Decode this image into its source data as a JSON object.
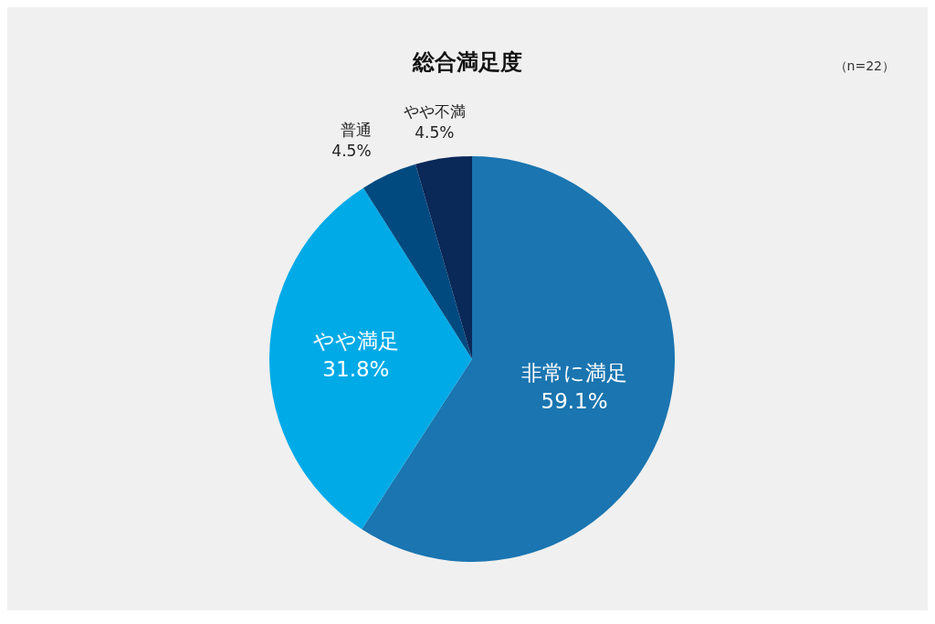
{
  "chart_data": {
    "type": "pie",
    "title": "総合満足度",
    "annotations": [
      "（n=22）"
    ],
    "categories": [
      "非常に満足",
      "やや満足",
      "普通",
      "やや不満"
    ],
    "values": [
      59.1,
      31.8,
      4.5,
      4.5
    ],
    "colors": [
      "#1a75b0",
      "#00aae7",
      "#004a80",
      "#0a2858"
    ],
    "value_labels": [
      "59.1%",
      "31.8%",
      "4.5%",
      "4.5%"
    ],
    "legend": false
  }
}
